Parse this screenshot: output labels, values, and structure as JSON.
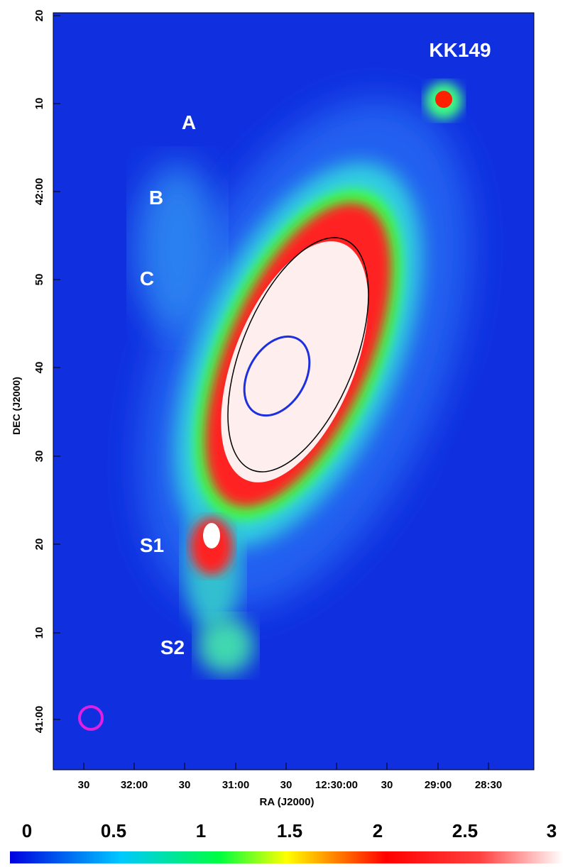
{
  "image": {
    "y_axis_label": "DEC (J2000)",
    "y_tick_labels": [
      "20",
      "10",
      "42:00",
      "50",
      "40",
      "30",
      "20",
      "10",
      "41:00"
    ],
    "x_axis_label": "RA (J2000)",
    "x_tick_labels": [
      "30",
      "32:00",
      "30",
      "31:00",
      "30",
      "12:30:00",
      "30",
      "29:00",
      "28:30"
    ],
    "annotations": [
      "KK149",
      "A",
      "B",
      "C",
      "S1",
      "S2"
    ],
    "colorbar": {
      "tick_labels": [
        "0",
        "0.5",
        "1",
        "1.5",
        "2",
        "2.5",
        "3"
      ]
    }
  }
}
